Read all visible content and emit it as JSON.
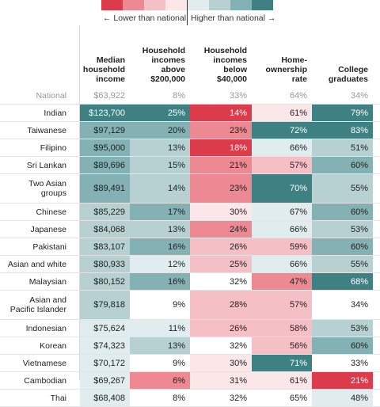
{
  "legend": {
    "lower_label": "← Lower than national",
    "higher_label": "Higher than national →",
    "swatches_low": [
      "#dc3b4b",
      "#ec8992",
      "#f5c0c5",
      "#fbe6e8"
    ],
    "swatches_high": [
      "#e0eced",
      "#b7d1d3",
      "#84b1b3",
      "#3f8183"
    ]
  },
  "chart_data": {
    "type": "table",
    "columns": [
      "Median\nhousehold\nincome",
      "Household\nincomes\nabove\n$200,000",
      "Household\nincomes\nbelow\n$40,000",
      "Home-\nownership\nrate",
      "College\ngraduates"
    ],
    "rows": [
      {
        "label": "National",
        "values": [
          "$63,922",
          "8%",
          "33%",
          "64%",
          "34%"
        ],
        "colors": [
          "#ffffff",
          "#ffffff",
          "#ffffff",
          "#ffffff",
          "#ffffff"
        ],
        "national": true
      },
      {
        "label": "Indian",
        "values": [
          "$123,700",
          "25%",
          "14%",
          "61%",
          "79%"
        ],
        "colors": [
          "#3f8183",
          "#3f8183",
          "#dc3b4b",
          "#fbe6e8",
          "#3f8183"
        ]
      },
      {
        "label": "Taiwanese",
        "values": [
          "$97,129",
          "20%",
          "23%",
          "72%",
          "83%"
        ],
        "colors": [
          "#84b1b3",
          "#84b1b3",
          "#ec8992",
          "#3f8183",
          "#3f8183"
        ]
      },
      {
        "label": "Filipino",
        "values": [
          "$95,000",
          "13%",
          "18%",
          "66%",
          "51%"
        ],
        "colors": [
          "#84b1b3",
          "#b7d1d3",
          "#dc3b4b",
          "#e0eced",
          "#b7d1d3"
        ]
      },
      {
        "label": "Sri Lankan",
        "values": [
          "$89,696",
          "15%",
          "21%",
          "57%",
          "60%"
        ],
        "colors": [
          "#84b1b3",
          "#b7d1d3",
          "#ec8992",
          "#f5c0c5",
          "#84b1b3"
        ]
      },
      {
        "label": "Two Asian\ngroups",
        "values": [
          "$89,491",
          "14%",
          "23%",
          "70%",
          "55%"
        ],
        "colors": [
          "#84b1b3",
          "#b7d1d3",
          "#ec8992",
          "#3f8183",
          "#b7d1d3"
        ]
      },
      {
        "label": "Chinese",
        "values": [
          "$85,229",
          "17%",
          "30%",
          "67%",
          "60%"
        ],
        "colors": [
          "#b7d1d3",
          "#84b1b3",
          "#fbe6e8",
          "#e0eced",
          "#84b1b3"
        ]
      },
      {
        "label": "Japanese",
        "values": [
          "$84,068",
          "13%",
          "24%",
          "66%",
          "53%"
        ],
        "colors": [
          "#b7d1d3",
          "#b7d1d3",
          "#ec8992",
          "#e0eced",
          "#b7d1d3"
        ]
      },
      {
        "label": "Pakistani",
        "values": [
          "$83,107",
          "16%",
          "26%",
          "59%",
          "60%"
        ],
        "colors": [
          "#b7d1d3",
          "#84b1b3",
          "#f5c0c5",
          "#f5c0c5",
          "#84b1b3"
        ]
      },
      {
        "label": "Asian and white",
        "values": [
          "$80,933",
          "12%",
          "25%",
          "66%",
          "55%"
        ],
        "colors": [
          "#b7d1d3",
          "#e0eced",
          "#f5c0c5",
          "#e0eced",
          "#b7d1d3"
        ]
      },
      {
        "label": "Malaysian",
        "values": [
          "$80,152",
          "16%",
          "32%",
          "47%",
          "68%"
        ],
        "colors": [
          "#b7d1d3",
          "#84b1b3",
          "#ffffff",
          "#ec8992",
          "#3f8183"
        ]
      },
      {
        "label": "Asian and\nPacific Islander",
        "values": [
          "$79,818",
          "9%",
          "28%",
          "57%",
          "34%"
        ],
        "colors": [
          "#b7d1d3",
          "#ffffff",
          "#f5c0c5",
          "#f5c0c5",
          "#ffffff"
        ]
      },
      {
        "label": "Indonesian",
        "values": [
          "$75,624",
          "11%",
          "26%",
          "58%",
          "53%"
        ],
        "colors": [
          "#e0eced",
          "#e0eced",
          "#f5c0c5",
          "#f5c0c5",
          "#b7d1d3"
        ]
      },
      {
        "label": "Korean",
        "values": [
          "$74,323",
          "13%",
          "32%",
          "56%",
          "60%"
        ],
        "colors": [
          "#e0eced",
          "#b7d1d3",
          "#ffffff",
          "#f5c0c5",
          "#84b1b3"
        ]
      },
      {
        "label": "Vietnamese",
        "values": [
          "$70,172",
          "9%",
          "30%",
          "71%",
          "33%"
        ],
        "colors": [
          "#e0eced",
          "#ffffff",
          "#fbe6e8",
          "#3f8183",
          "#ffffff"
        ]
      },
      {
        "label": "Cambodian",
        "values": [
          "$69,267",
          "6%",
          "31%",
          "61%",
          "21%"
        ],
        "colors": [
          "#e0eced",
          "#ec8992",
          "#fbe6e8",
          "#fbe6e8",
          "#dc3b4b"
        ]
      },
      {
        "label": "Thai",
        "values": [
          "$68,408",
          "8%",
          "32%",
          "65%",
          "48%"
        ],
        "colors": [
          "#e0eced",
          "#ffffff",
          "#ffffff",
          "#ffffff",
          "#e0eced"
        ]
      }
    ]
  }
}
